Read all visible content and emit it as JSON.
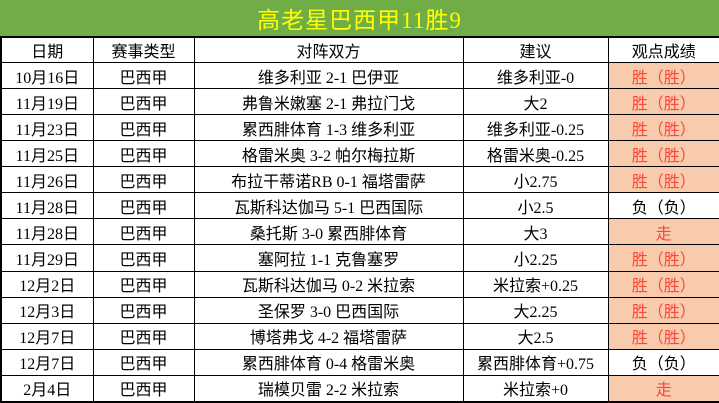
{
  "title": "高老星巴西甲11胜9",
  "colors": {
    "title_bg": "#71AD47",
    "title_text": "#FFFF00",
    "result_highlight_bg": "#F8CBAD",
    "result_highlight_text": "#FF4438",
    "grid_border": "#000000"
  },
  "table": {
    "headers": [
      "日期",
      "赛事类型",
      "对阵双方",
      "建议",
      "观点成绩"
    ],
    "rows": [
      {
        "date": "10月16日",
        "league": "巴西甲",
        "match": "维多利亚 2-1 巴伊亚",
        "suggestion": "维多利亚-0",
        "result": "胜（胜）",
        "result_state": "win"
      },
      {
        "date": "11月19日",
        "league": "巴西甲",
        "match": "弗鲁米嫩塞 2-1 弗拉门戈",
        "suggestion": "大2",
        "result": "胜（胜）",
        "result_state": "win"
      },
      {
        "date": "11月23日",
        "league": "巴西甲",
        "match": "累西腓体育 1-3 维多利亚",
        "suggestion": "维多利亚-0.25",
        "result": "胜（胜）",
        "result_state": "win"
      },
      {
        "date": "11月25日",
        "league": "巴西甲",
        "match": "格雷米奥 3-2 帕尔梅拉斯",
        "suggestion": "格雷米奥-0.25",
        "result": "胜（胜）",
        "result_state": "win"
      },
      {
        "date": "11月26日",
        "league": "巴西甲",
        "match": "布拉干蒂诺RB 0-1 福塔雷萨",
        "suggestion": "小2.75",
        "result": "胜（胜）",
        "result_state": "win"
      },
      {
        "date": "11月28日",
        "league": "巴西甲",
        "match": "瓦斯科达伽马 5-1 巴西国际",
        "suggestion": "小2.5",
        "result": "负（负）",
        "result_state": "loss"
      },
      {
        "date": "11月28日",
        "league": "巴西甲",
        "match": "桑托斯 3-0 累西腓体育",
        "suggestion": "大3",
        "result": "走",
        "result_state": "push"
      },
      {
        "date": "11月29日",
        "league": "巴西甲",
        "match": "塞阿拉 1-1 克鲁塞罗",
        "suggestion": "小2.25",
        "result": "胜（胜）",
        "result_state": "win"
      },
      {
        "date": "12月2日",
        "league": "巴西甲",
        "match": "瓦斯科达伽马 0-2 米拉索",
        "suggestion": "米拉索+0.25",
        "result": "胜（胜）",
        "result_state": "win"
      },
      {
        "date": "12月3日",
        "league": "巴西甲",
        "match": "圣保罗 3-0 巴西国际",
        "suggestion": "大2.25",
        "result": "胜（胜）",
        "result_state": "win"
      },
      {
        "date": "12月7日",
        "league": "巴西甲",
        "match": "博塔弗戈 4-2 福塔雷萨",
        "suggestion": "大2.5",
        "result": "胜（胜）",
        "result_state": "win"
      },
      {
        "date": "12月7日",
        "league": "巴西甲",
        "match": "累西腓体育 0-4 格雷米奥",
        "suggestion": "累西腓体育+0.75",
        "result": "负（负）",
        "result_state": "loss"
      },
      {
        "date": "2月4日",
        "league": "巴西甲",
        "match": "瑞模贝雷 2-2 米拉索",
        "suggestion": "米拉索+0",
        "result": "走",
        "result_state": "push"
      }
    ]
  }
}
